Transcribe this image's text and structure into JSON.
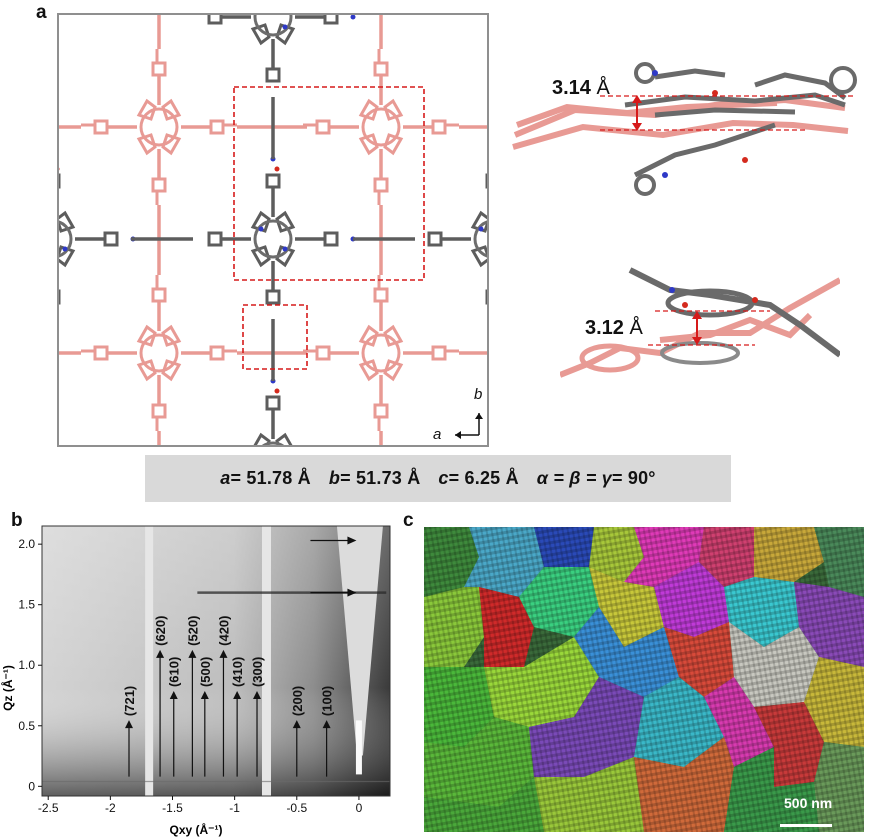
{
  "figure": {
    "panel_a": {
      "label": "a",
      "axis_b": "b",
      "axis_a": "a",
      "stacking_distance_1": {
        "value": "3.14",
        "unit": "Å"
      },
      "stacking_distance_2": {
        "value": "3.12",
        "unit": "Å"
      },
      "cell_params": {
        "a_sym": "a",
        "a_val": " = 51.78 Å",
        "b_sym": "b",
        "b_val": " = 51.73 Å",
        "c_sym": "c",
        "c_val": " = 6.25 Å",
        "angles_sym": "α = β = γ",
        "angles_val": " = 90°"
      },
      "colors": {
        "layer_a": "#e89a94",
        "layer_b": "#5d5d5d",
        "nitrogen": "#2e39c7",
        "oxygen": "#d42a1e",
        "highlight": "#d61a1a"
      }
    },
    "panel_b": {
      "label": "b",
      "xlabel": "Qxy (Å⁻¹)",
      "ylabel": "Qz (Å⁻¹)"
    },
    "panel_c": {
      "label": "c",
      "scale_bar": "500 nm"
    }
  },
  "chart_data": {
    "type": "heatmap",
    "xlabel": "Qxy (Å⁻¹)",
    "ylabel": "Qz (Å⁻¹)",
    "xlim": [
      -2.55,
      0.25
    ],
    "ylim": [
      -0.08,
      2.15
    ],
    "xticks": [
      -2.5,
      -2,
      -1.5,
      -1,
      -0.5,
      0
    ],
    "xtick_labels": [
      "-2.5",
      "-2",
      "-1.5",
      "-1",
      "-0.5",
      "0"
    ],
    "yticks": [
      0,
      0.5,
      1.0,
      1.5,
      2.0
    ],
    "ytick_labels": [
      "0",
      "0.5",
      "1.0",
      "1.5",
      "2.0"
    ],
    "peak_annotations": [
      {
        "label": "(721)",
        "qxy": -1.85,
        "y": 0.08,
        "text_y": 0.58
      },
      {
        "label": "(620)",
        "qxy": -1.6,
        "y": 0.08,
        "text_y": 1.16
      },
      {
        "label": "(610)",
        "qxy": -1.49,
        "y": 0.08,
        "text_y": 0.82
      },
      {
        "label": "(520)",
        "qxy": -1.34,
        "y": 0.08,
        "text_y": 1.16
      },
      {
        "label": "(500)",
        "qxy": -1.24,
        "y": 0.08,
        "text_y": 0.82
      },
      {
        "label": "(420)",
        "qxy": -1.09,
        "y": 0.08,
        "text_y": 1.16
      },
      {
        "label": "(410)",
        "qxy": -0.98,
        "y": 0.08,
        "text_y": 0.82
      },
      {
        "label": "(300)",
        "qxy": -0.82,
        "y": 0.08,
        "text_y": 0.82
      },
      {
        "label": "(200)",
        "qxy": -0.5,
        "y": 0.08,
        "text_y": 0.58
      },
      {
        "label": "(100)",
        "qxy": -0.26,
        "y": 0.08,
        "text_y": 0.58
      }
    ],
    "horizontal_arrows_qz": [
      2.03,
      1.6
    ]
  }
}
